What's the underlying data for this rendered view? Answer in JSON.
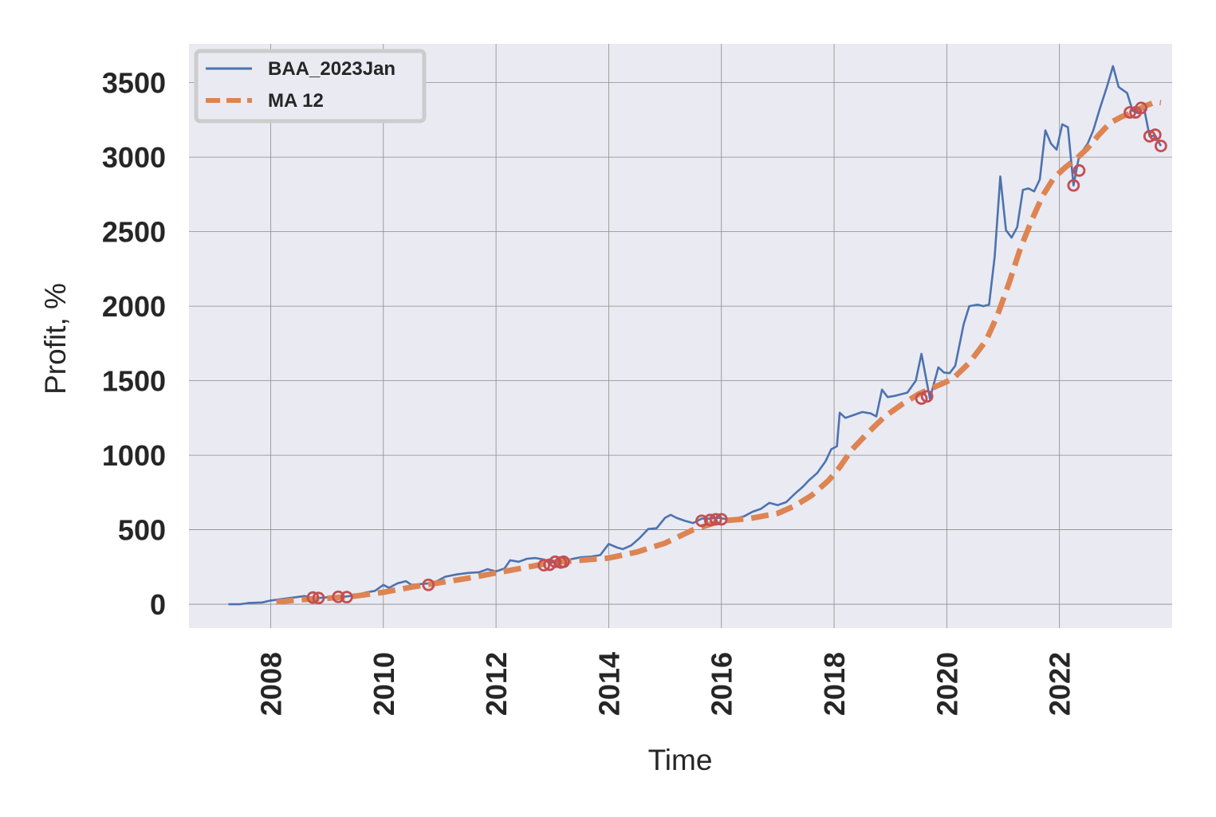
{
  "chart_data": {
    "type": "line",
    "xlabel": "Time",
    "ylabel": "Profit, %",
    "xlim": [
      2006.55,
      2024.0
    ],
    "ylim": [
      -160,
      3760
    ],
    "x_ticks": [
      2008,
      2010,
      2012,
      2014,
      2016,
      2018,
      2020,
      2022
    ],
    "y_ticks": [
      0,
      500,
      1000,
      1500,
      2000,
      2500,
      3000,
      3500
    ],
    "grid": true,
    "legend": {
      "position": "top-left"
    },
    "colors": {
      "BAA_2023Jan": "#4c72b0",
      "MA 12": "#dd8452",
      "markers": "#c44e52",
      "background": "#eaeaf2"
    },
    "series": [
      {
        "name": "BAA_2023Jan",
        "style": "solid",
        "points": [
          [
            2007.25,
            0
          ],
          [
            2007.45,
            0
          ],
          [
            2007.6,
            8
          ],
          [
            2007.85,
            12
          ],
          [
            2008.0,
            25
          ],
          [
            2008.2,
            35
          ],
          [
            2008.4,
            45
          ],
          [
            2008.6,
            55
          ],
          [
            2008.8,
            40
          ],
          [
            2008.95,
            45
          ],
          [
            2009.1,
            50
          ],
          [
            2009.25,
            48
          ],
          [
            2009.4,
            55
          ],
          [
            2009.55,
            65
          ],
          [
            2009.7,
            80
          ],
          [
            2009.85,
            90
          ],
          [
            2010.0,
            130
          ],
          [
            2010.1,
            110
          ],
          [
            2010.25,
            140
          ],
          [
            2010.4,
            155
          ],
          [
            2010.5,
            130
          ],
          [
            2010.65,
            135
          ],
          [
            2010.8,
            140
          ],
          [
            2010.95,
            155
          ],
          [
            2011.1,
            185
          ],
          [
            2011.3,
            200
          ],
          [
            2011.5,
            210
          ],
          [
            2011.7,
            215
          ],
          [
            2011.85,
            235
          ],
          [
            2012.0,
            220
          ],
          [
            2012.15,
            240
          ],
          [
            2012.25,
            295
          ],
          [
            2012.4,
            285
          ],
          [
            2012.55,
            305
          ],
          [
            2012.7,
            310
          ],
          [
            2012.85,
            300
          ],
          [
            2013.0,
            280
          ],
          [
            2013.15,
            285
          ],
          [
            2013.3,
            300
          ],
          [
            2013.5,
            315
          ],
          [
            2013.7,
            320
          ],
          [
            2013.85,
            330
          ],
          [
            2014.0,
            405
          ],
          [
            2014.15,
            380
          ],
          [
            2014.25,
            370
          ],
          [
            2014.4,
            395
          ],
          [
            2014.55,
            445
          ],
          [
            2014.7,
            505
          ],
          [
            2014.85,
            510
          ],
          [
            2015.0,
            580
          ],
          [
            2015.1,
            600
          ],
          [
            2015.2,
            580
          ],
          [
            2015.35,
            560
          ],
          [
            2015.5,
            545
          ],
          [
            2015.65,
            575
          ],
          [
            2015.8,
            575
          ],
          [
            2015.95,
            580
          ],
          [
            2016.1,
            570
          ],
          [
            2016.25,
            575
          ],
          [
            2016.4,
            590
          ],
          [
            2016.55,
            620
          ],
          [
            2016.7,
            640
          ],
          [
            2016.85,
            680
          ],
          [
            2017.0,
            665
          ],
          [
            2017.15,
            685
          ],
          [
            2017.3,
            740
          ],
          [
            2017.45,
            790
          ],
          [
            2017.55,
            830
          ],
          [
            2017.7,
            880
          ],
          [
            2017.85,
            960
          ],
          [
            2017.95,
            1040
          ],
          [
            2018.05,
            1060
          ],
          [
            2018.1,
            1285
          ],
          [
            2018.2,
            1250
          ],
          [
            2018.35,
            1270
          ],
          [
            2018.5,
            1290
          ],
          [
            2018.65,
            1280
          ],
          [
            2018.75,
            1260
          ],
          [
            2018.85,
            1440
          ],
          [
            2018.95,
            1390
          ],
          [
            2019.1,
            1400
          ],
          [
            2019.3,
            1420
          ],
          [
            2019.45,
            1500
          ],
          [
            2019.55,
            1680
          ],
          [
            2019.7,
            1380
          ],
          [
            2019.85,
            1590
          ],
          [
            2019.95,
            1555
          ],
          [
            2020.05,
            1550
          ],
          [
            2020.15,
            1600
          ],
          [
            2020.3,
            1880
          ],
          [
            2020.4,
            2000
          ],
          [
            2020.55,
            2010
          ],
          [
            2020.65,
            2000
          ],
          [
            2020.75,
            2010
          ],
          [
            2020.85,
            2330
          ],
          [
            2020.95,
            2870
          ],
          [
            2021.05,
            2510
          ],
          [
            2021.15,
            2460
          ],
          [
            2021.25,
            2530
          ],
          [
            2021.35,
            2780
          ],
          [
            2021.45,
            2790
          ],
          [
            2021.55,
            2770
          ],
          [
            2021.65,
            2850
          ],
          [
            2021.75,
            3180
          ],
          [
            2021.85,
            3090
          ],
          [
            2021.95,
            3050
          ],
          [
            2022.05,
            3220
          ],
          [
            2022.15,
            3200
          ],
          [
            2022.25,
            2810
          ],
          [
            2022.35,
            3010
          ],
          [
            2022.5,
            3090
          ],
          [
            2022.6,
            3180
          ],
          [
            2022.72,
            3330
          ],
          [
            2022.85,
            3480
          ],
          [
            2022.95,
            3610
          ],
          [
            2023.05,
            3470
          ],
          [
            2023.2,
            3430
          ],
          [
            2023.3,
            3310
          ],
          [
            2023.4,
            3295
          ],
          [
            2023.5,
            3330
          ],
          [
            2023.6,
            3140
          ],
          [
            2023.7,
            3145
          ],
          [
            2023.8,
            3075
          ]
        ]
      },
      {
        "name": "MA 12",
        "style": "dashed",
        "points": [
          [
            2008.1,
            15
          ],
          [
            2008.5,
            30
          ],
          [
            2009.0,
            40
          ],
          [
            2009.5,
            55
          ],
          [
            2010.0,
            80
          ],
          [
            2010.5,
            115
          ],
          [
            2011.0,
            145
          ],
          [
            2011.5,
            175
          ],
          [
            2012.0,
            210
          ],
          [
            2012.5,
            245
          ],
          [
            2013.0,
            280
          ],
          [
            2013.5,
            295
          ],
          [
            2014.0,
            310
          ],
          [
            2014.5,
            350
          ],
          [
            2015.0,
            410
          ],
          [
            2015.5,
            500
          ],
          [
            2016.0,
            560
          ],
          [
            2016.5,
            575
          ],
          [
            2017.0,
            610
          ],
          [
            2017.3,
            660
          ],
          [
            2017.6,
            730
          ],
          [
            2017.9,
            830
          ],
          [
            2018.1,
            920
          ],
          [
            2018.3,
            1030
          ],
          [
            2018.6,
            1150
          ],
          [
            2018.9,
            1260
          ],
          [
            2019.2,
            1340
          ],
          [
            2019.5,
            1410
          ],
          [
            2019.8,
            1460
          ],
          [
            2020.1,
            1510
          ],
          [
            2020.4,
            1620
          ],
          [
            2020.7,
            1770
          ],
          [
            2020.9,
            1940
          ],
          [
            2021.1,
            2150
          ],
          [
            2021.3,
            2380
          ],
          [
            2021.5,
            2570
          ],
          [
            2021.7,
            2740
          ],
          [
            2021.9,
            2860
          ],
          [
            2022.1,
            2930
          ],
          [
            2022.3,
            2990
          ],
          [
            2022.5,
            3060
          ],
          [
            2022.7,
            3150
          ],
          [
            2022.9,
            3230
          ],
          [
            2023.1,
            3270
          ],
          [
            2023.3,
            3300
          ],
          [
            2023.5,
            3340
          ],
          [
            2023.7,
            3370
          ],
          [
            2023.8,
            3365
          ]
        ]
      }
    ],
    "markers": [
      [
        2008.75,
        45
      ],
      [
        2008.85,
        42
      ],
      [
        2009.2,
        50
      ],
      [
        2009.35,
        48
      ],
      [
        2010.8,
        130
      ],
      [
        2012.85,
        262
      ],
      [
        2012.95,
        265
      ],
      [
        2013.05,
        285
      ],
      [
        2013.15,
        280
      ],
      [
        2013.2,
        285
      ],
      [
        2015.65,
        560
      ],
      [
        2015.8,
        565
      ],
      [
        2015.9,
        570
      ],
      [
        2016.0,
        570
      ],
      [
        2019.55,
        1380
      ],
      [
        2019.65,
        1395
      ],
      [
        2022.25,
        2810
      ],
      [
        2022.35,
        2910
      ],
      [
        2023.25,
        3300
      ],
      [
        2023.35,
        3300
      ],
      [
        2023.45,
        3330
      ],
      [
        2023.6,
        3140
      ],
      [
        2023.7,
        3150
      ],
      [
        2023.8,
        3075
      ]
    ]
  },
  "legend": {
    "items": [
      {
        "label": "BAA_2023Jan"
      },
      {
        "label": "MA 12"
      }
    ]
  }
}
